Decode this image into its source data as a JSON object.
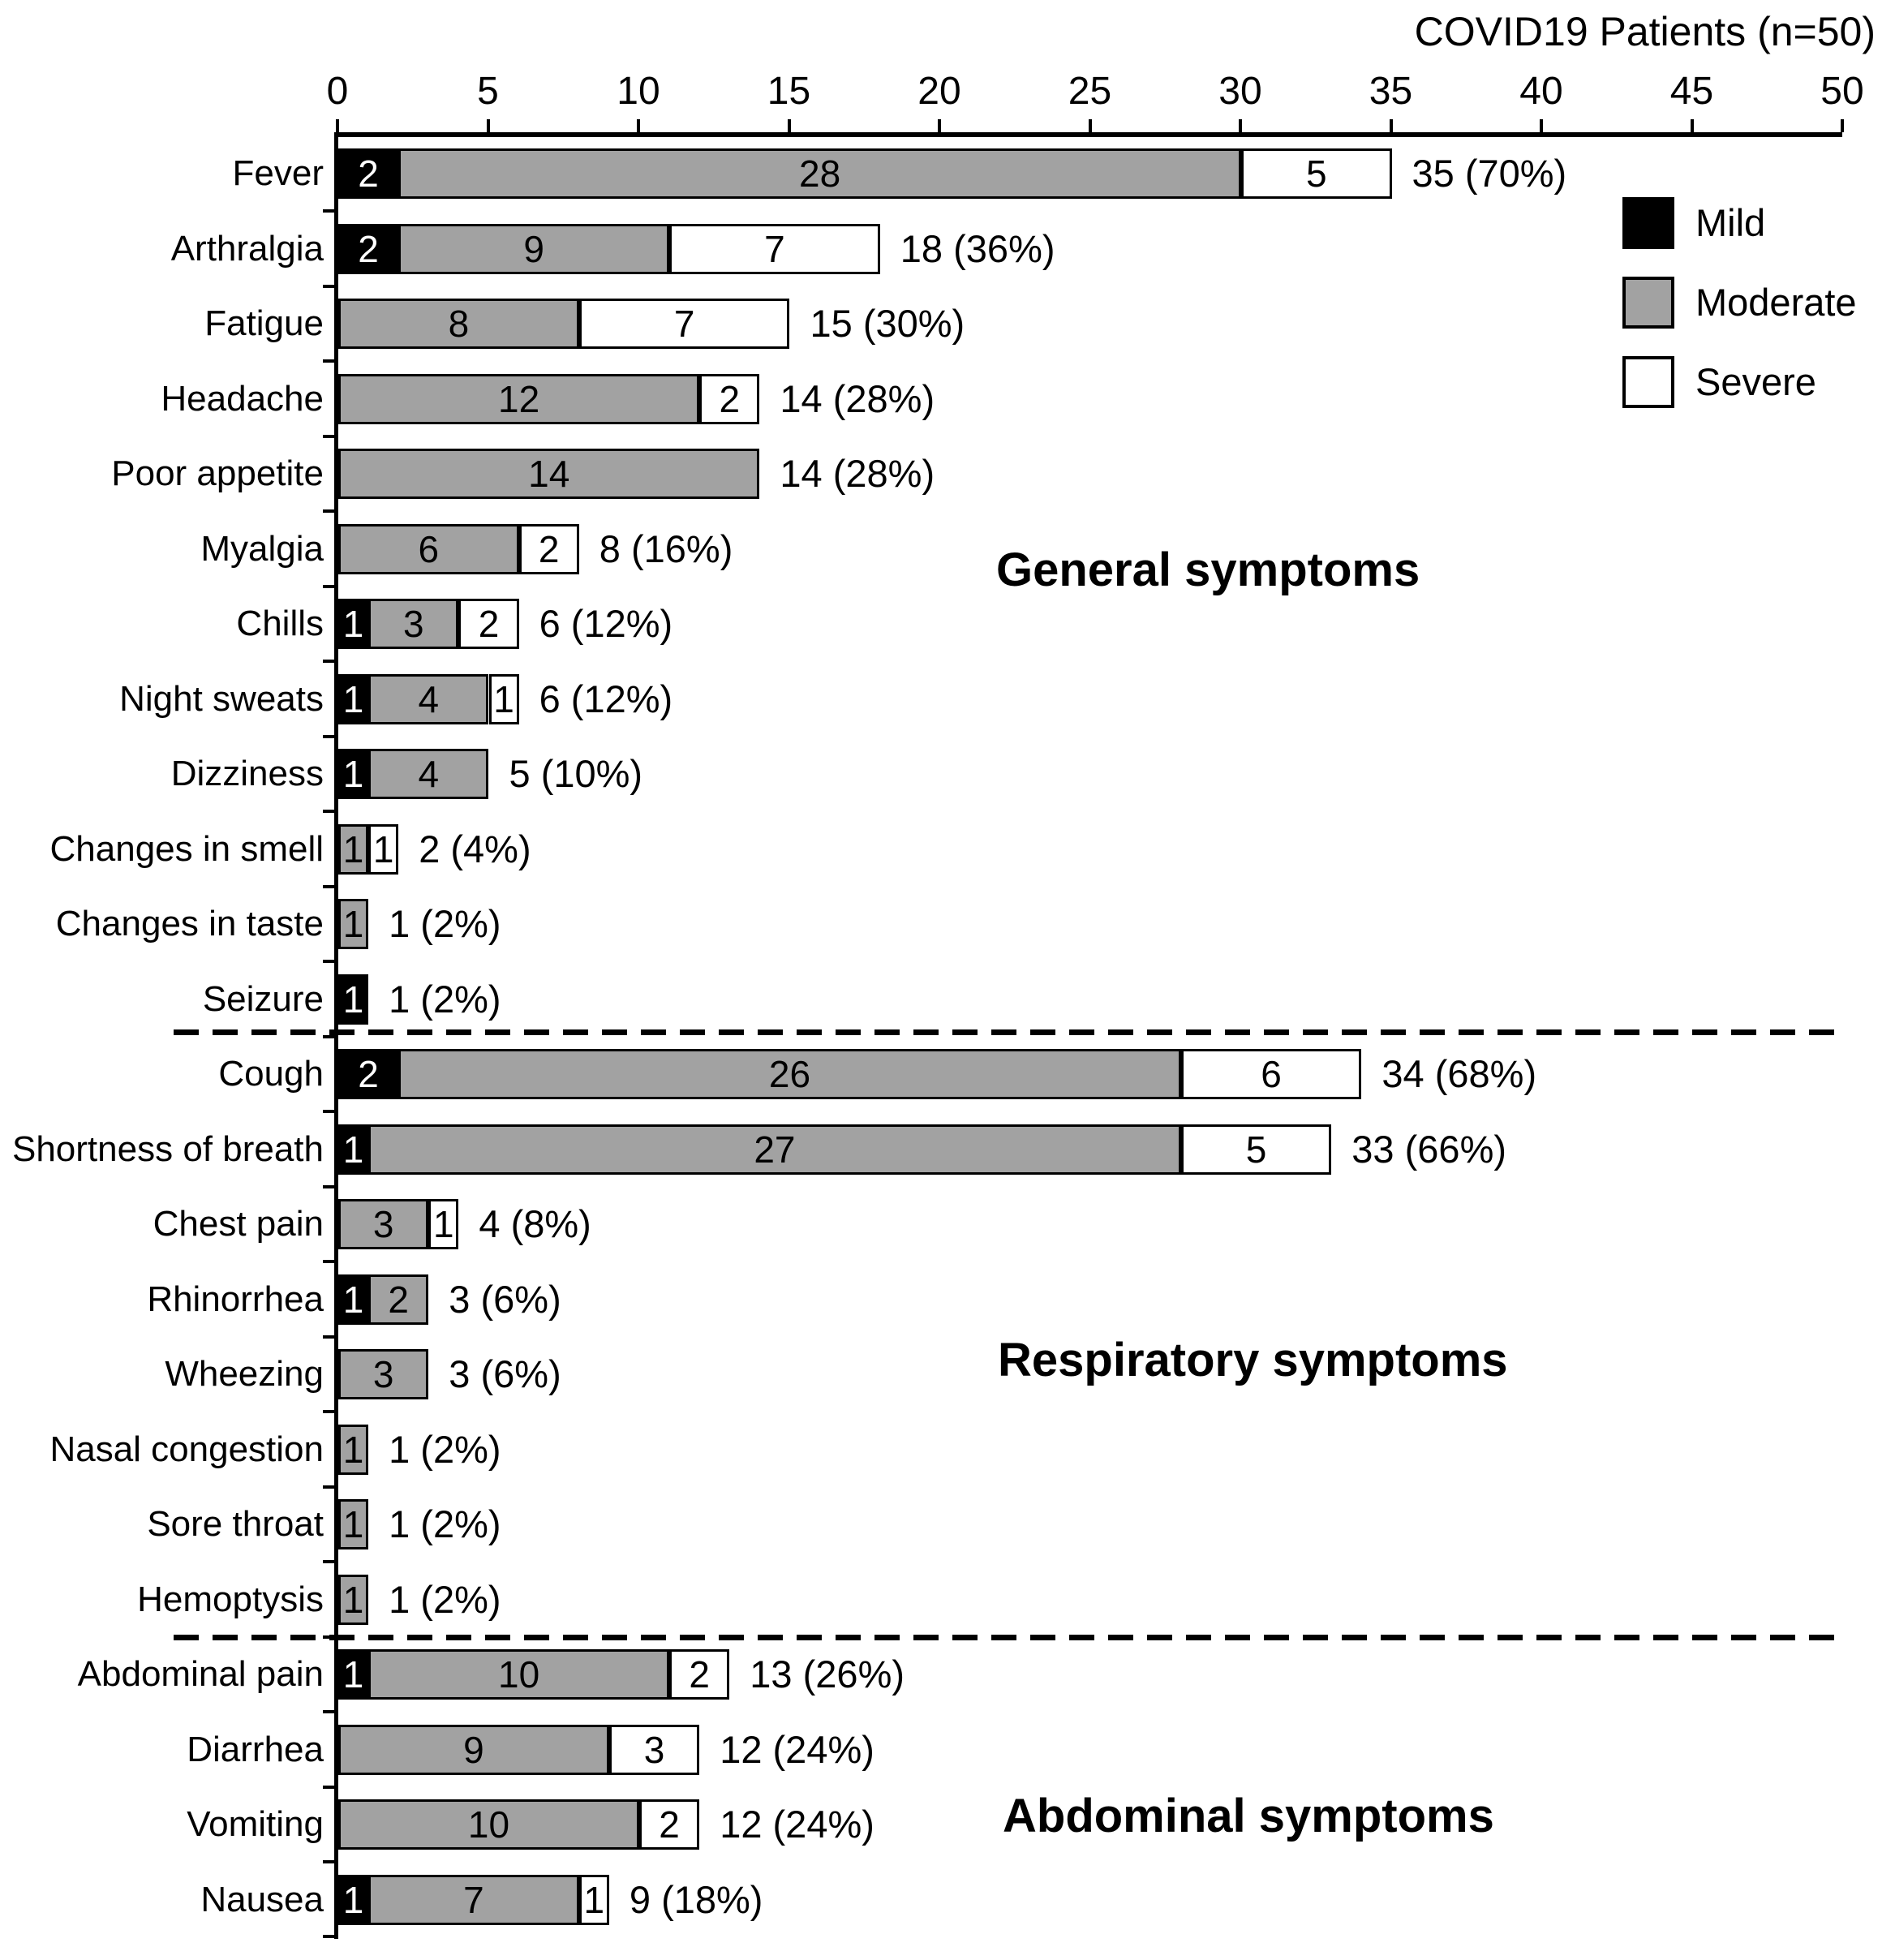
{
  "title": "COVID19 Patients (n=50)",
  "legend": {
    "items": [
      {
        "key": "mild",
        "label": "Mild",
        "color": "#000000"
      },
      {
        "key": "moderate",
        "label": "Moderate",
        "color": "#a2a2a2"
      },
      {
        "key": "severe",
        "label": "Severe",
        "color": "#ffffff"
      }
    ]
  },
  "chart_data": {
    "type": "bar",
    "orientation": "horizontal",
    "stacked": true,
    "title": "COVID19 Patients (n=50)",
    "xlabel": "",
    "ylabel": "",
    "xlim": [
      0,
      50
    ],
    "x_ticks": [
      0,
      5,
      10,
      15,
      20,
      25,
      30,
      35,
      40,
      45,
      50
    ],
    "axis_position": "top",
    "grid": false,
    "legend_position": "upper-right",
    "series_names": [
      "Mild",
      "Moderate",
      "Severe"
    ],
    "colors": {
      "mild": "#000000",
      "moderate": "#a2a2a2",
      "severe": "#ffffff"
    },
    "groups": [
      {
        "name": "General symptoms",
        "rows": [
          {
            "label": "Fever",
            "mild": 2,
            "moderate": 28,
            "severe": 5,
            "total_label": "35 (70%)"
          },
          {
            "label": "Arthralgia",
            "mild": 2,
            "moderate": 9,
            "severe": 7,
            "total_label": "18 (36%)"
          },
          {
            "label": "Fatigue",
            "mild": 0,
            "moderate": 8,
            "severe": 7,
            "total_label": "15 (30%)"
          },
          {
            "label": "Headache",
            "mild": 0,
            "moderate": 12,
            "severe": 2,
            "total_label": "14 (28%)"
          },
          {
            "label": "Poor appetite",
            "mild": 0,
            "moderate": 14,
            "severe": 0,
            "total_label": "14 (28%)"
          },
          {
            "label": "Myalgia",
            "mild": 0,
            "moderate": 6,
            "severe": 2,
            "total_label": "8 (16%)"
          },
          {
            "label": "Chills",
            "mild": 1,
            "moderate": 3,
            "severe": 2,
            "total_label": "6 (12%)"
          },
          {
            "label": "Night sweats",
            "mild": 1,
            "moderate": 4,
            "severe": 1,
            "total_label": "6 (12%)"
          },
          {
            "label": "Dizziness",
            "mild": 1,
            "moderate": 4,
            "severe": 0,
            "total_label": "5 (10%)"
          },
          {
            "label": "Changes in smell",
            "mild": 0,
            "moderate": 1,
            "severe": 1,
            "total_label": "2 (4%)"
          },
          {
            "label": "Changes in taste",
            "mild": 0,
            "moderate": 1,
            "severe": 0,
            "total_label": "1 (2%)"
          },
          {
            "label": "Seizure",
            "mild": 1,
            "moderate": 0,
            "severe": 0,
            "total_label": "1 (2%)"
          }
        ]
      },
      {
        "name": "Respiratory symptoms",
        "rows": [
          {
            "label": "Cough",
            "mild": 2,
            "moderate": 26,
            "severe": 6,
            "total_label": "34 (68%)"
          },
          {
            "label": "Shortness of breath",
            "mild": 1,
            "moderate": 27,
            "severe": 5,
            "total_label": "33 (66%)"
          },
          {
            "label": "Chest pain",
            "mild": 0,
            "moderate": 3,
            "severe": 1,
            "total_label": "4 (8%)"
          },
          {
            "label": "Rhinorrhea",
            "mild": 1,
            "moderate": 2,
            "severe": 0,
            "total_label": "3 (6%)"
          },
          {
            "label": "Wheezing",
            "mild": 0,
            "moderate": 3,
            "severe": 0,
            "total_label": "3 (6%)"
          },
          {
            "label": "Nasal congestion",
            "mild": 0,
            "moderate": 1,
            "severe": 0,
            "total_label": "1 (2%)"
          },
          {
            "label": "Sore throat",
            "mild": 0,
            "moderate": 1,
            "severe": 0,
            "total_label": "1 (2%)"
          },
          {
            "label": "Hemoptysis",
            "mild": 0,
            "moderate": 1,
            "severe": 0,
            "total_label": "1 (2%)"
          }
        ]
      },
      {
        "name": "Abdominal symptoms",
        "rows": [
          {
            "label": "Abdominal pain",
            "mild": 1,
            "moderate": 10,
            "severe": 2,
            "total_label": "13 (26%)"
          },
          {
            "label": "Diarrhea",
            "mild": 0,
            "moderate": 9,
            "severe": 3,
            "total_label": "12 (24%)"
          },
          {
            "label": "Vomiting",
            "mild": 0,
            "moderate": 10,
            "severe": 2,
            "total_label": "12 (24%)"
          },
          {
            "label": "Nausea",
            "mild": 1,
            "moderate": 7,
            "severe": 1,
            "total_label": "9 (18%)"
          }
        ]
      }
    ]
  }
}
